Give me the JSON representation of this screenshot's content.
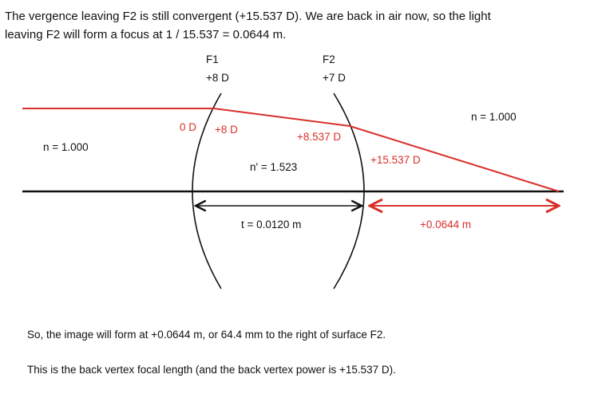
{
  "intro": {
    "line1": "The vergence leaving F2 is still convergent (+15.537 D). We are back in air now, so the light",
    "line2": "leaving F2 will form a focus at 1 / 15.537 = 0.0644 m."
  },
  "diagram": {
    "surface1": {
      "name": "F1",
      "power": "+8 D"
    },
    "surface2": {
      "name": "F2",
      "power": "+7 D"
    },
    "index_left": "n = 1.000",
    "index_lens": "n' = 1.523",
    "index_right": "n = 1.000",
    "vergence_incident": "0 D",
    "vergence_after_f1": "+8 D",
    "vergence_at_f2": "+8.537 D",
    "vergence_after_f2": "+15.537 D",
    "thickness": "t = 0.0120 m",
    "back_vertex_distance": "+0.0644 m",
    "colors": {
      "ray": "#d9302a",
      "lens": "#111111"
    }
  },
  "conclusion": {
    "line1": "So, the image will form at +0.0644 m, or 64.4 mm to the right of surface F2.",
    "line2": "This is the back vertex focal length (and the back vertex power is +15.537 D)."
  }
}
